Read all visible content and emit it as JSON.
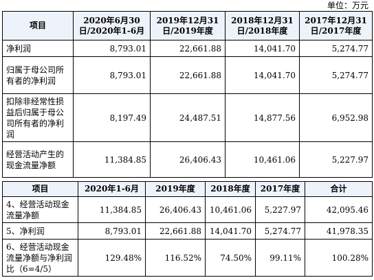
{
  "unit": "单位：万元",
  "table1": {
    "headers": [
      "项目",
      "2020年6月30日/2020年1-6月",
      "2019年12月31日/2019年度",
      "2018年12月31日/2018年度",
      "2017年12月31日/2017年度"
    ],
    "rows": [
      {
        "label": "净利润",
        "values": [
          "8,793.01",
          "22,661.88",
          "14,041.70",
          "5,274.77"
        ]
      },
      {
        "label": "归属于母公司所有者的净利润",
        "values": [
          "8,793.01",
          "22,661.88",
          "14,041.70",
          "5,274.77"
        ]
      },
      {
        "label": "扣除非经常性损益后归属于母公司所有者的净利润",
        "values": [
          "8,197.49",
          "24,487.51",
          "14,877.56",
          "6,952.98"
        ]
      },
      {
        "label": "经营活动产生的现金流量净额",
        "values": [
          "11,384.85",
          "26,406.43",
          "10,461.06",
          "5,227.97"
        ]
      }
    ]
  },
  "table2": {
    "headers": [
      "项目",
      "2020年1-6月",
      "2019年度",
      "2018年度",
      "2017年度",
      "合计"
    ],
    "rows": [
      {
        "label": "4、经营活动现金流量净额",
        "values": [
          "11,384.85",
          "26,406.43",
          "10,461.06",
          "5,227.97",
          "42,095.46"
        ]
      },
      {
        "label": "5、净利润",
        "values": [
          "8,793.01",
          "22,661.88",
          "14,041.70",
          "5,274.77",
          "41,978.35"
        ]
      },
      {
        "label": "6、经营活动现金流量净额与净利润比（6=4/5）",
        "values": [
          "129.48%",
          "116.52%",
          "74.50%",
          "99.11%",
          "100.28%"
        ]
      }
    ]
  }
}
